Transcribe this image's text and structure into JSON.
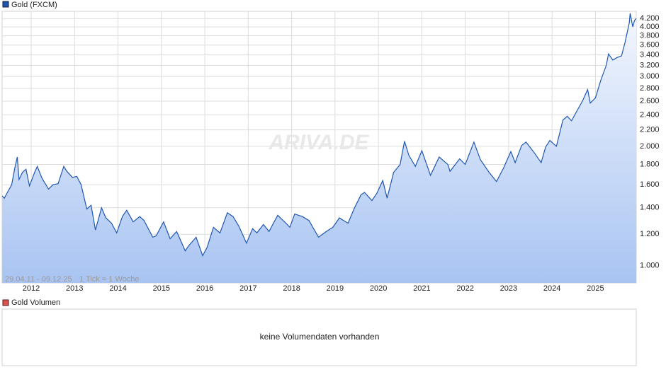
{
  "chart_data": {
    "type": "line",
    "subtitle": "29.04.11 - 09.12.25",
    "note": "1 Tick = 1 Woche",
    "watermark": "ARIVA.DE",
    "log_scale": true,
    "grid": true,
    "x": [
      2011.33,
      2011.38,
      2011.45,
      2011.55,
      2011.62,
      2011.68,
      2011.72,
      2011.8,
      2011.88,
      2011.96,
      2012.08,
      2012.14,
      2012.25,
      2012.4,
      2012.5,
      2012.62,
      2012.75,
      2012.82,
      2012.95,
      2013.05,
      2013.15,
      2013.28,
      2013.38,
      2013.48,
      2013.62,
      2013.72,
      2013.85,
      2013.97,
      2014.1,
      2014.2,
      2014.35,
      2014.5,
      2014.6,
      2014.8,
      2014.88,
      2015.05,
      2015.2,
      2015.35,
      2015.55,
      2015.62,
      2015.8,
      2015.95,
      2016.05,
      2016.2,
      2016.35,
      2016.52,
      2016.65,
      2016.78,
      2016.96,
      2017.1,
      2017.2,
      2017.35,
      2017.48,
      2017.68,
      2017.9,
      2017.96,
      2018.07,
      2018.25,
      2018.4,
      2018.62,
      2018.8,
      2018.95,
      2019.1,
      2019.3,
      2019.45,
      2019.6,
      2019.68,
      2019.85,
      2019.96,
      2020.1,
      2020.2,
      2020.35,
      2020.5,
      2020.6,
      2020.7,
      2020.85,
      2021.0,
      2021.2,
      2021.4,
      2021.6,
      2021.65,
      2021.87,
      2022.0,
      2022.2,
      2022.35,
      2022.55,
      2022.72,
      2022.88,
      2023.05,
      2023.15,
      2023.3,
      2023.4,
      2023.6,
      2023.75,
      2023.85,
      2023.95,
      2024.1,
      2024.25,
      2024.35,
      2024.45,
      2024.55,
      2024.7,
      2024.82,
      2024.88,
      2025.0,
      2025.12,
      2025.25,
      2025.3,
      2025.4,
      2025.5,
      2025.6,
      2025.68,
      2025.78,
      2025.8,
      2025.86,
      2025.9,
      2025.94
    ],
    "series": [
      {
        "name": "Gold (FXCM)",
        "color": "#1f57b0",
        "values": [
          1500,
          1480,
          1530,
          1600,
          1760,
          1880,
          1650,
          1720,
          1750,
          1590,
          1720,
          1780,
          1660,
          1560,
          1600,
          1610,
          1780,
          1730,
          1670,
          1680,
          1600,
          1390,
          1420,
          1230,
          1400,
          1320,
          1280,
          1210,
          1330,
          1380,
          1290,
          1330,
          1300,
          1180,
          1190,
          1290,
          1170,
          1220,
          1090,
          1120,
          1180,
          1060,
          1110,
          1250,
          1210,
          1360,
          1330,
          1260,
          1140,
          1240,
          1210,
          1270,
          1220,
          1340,
          1270,
          1250,
          1350,
          1330,
          1300,
          1180,
          1220,
          1250,
          1320,
          1280,
          1400,
          1510,
          1530,
          1460,
          1520,
          1640,
          1480,
          1720,
          1800,
          2060,
          1900,
          1780,
          1950,
          1690,
          1880,
          1800,
          1730,
          1860,
          1800,
          2050,
          1850,
          1720,
          1630,
          1760,
          1940,
          1820,
          2010,
          2050,
          1920,
          1820,
          1990,
          2070,
          2000,
          2330,
          2380,
          2320,
          2430,
          2600,
          2780,
          2570,
          2650,
          2930,
          3200,
          3420,
          3300,
          3350,
          3380,
          3650,
          4100,
          4330,
          4000,
          4150,
          4200
        ]
      }
    ],
    "xlim": [
      2011.33,
      2025.94
    ],
    "xticks": [
      2012,
      2013,
      2014,
      2015,
      2016,
      2017,
      2018,
      2019,
      2020,
      2021,
      2022,
      2023,
      2024,
      2025
    ],
    "ylim": [
      905,
      4380
    ],
    "yticks": [
      {
        "value": 1000,
        "label": "1.000"
      },
      {
        "value": 1200,
        "label": "1.200"
      },
      {
        "value": 1400,
        "label": "1.400"
      },
      {
        "value": 1600,
        "label": "1.600"
      },
      {
        "value": 1800,
        "label": "1.800"
      },
      {
        "value": 2000,
        "label": "2.000"
      },
      {
        "value": 2200,
        "label": "2.200"
      },
      {
        "value": 2400,
        "label": "2.400"
      },
      {
        "value": 2600,
        "label": "2.600"
      },
      {
        "value": 2800,
        "label": "2.800"
      },
      {
        "value": 3000,
        "label": "3.000"
      },
      {
        "value": 3200,
        "label": "3.200"
      },
      {
        "value": 3400,
        "label": "3.400"
      },
      {
        "value": 3600,
        "label": "3.600"
      },
      {
        "value": 3800,
        "label": "3.800"
      },
      {
        "value": 4000,
        "label": "4.000"
      },
      {
        "value": 4200,
        "label": "4.200"
      }
    ]
  },
  "volume_panel": {
    "legend": "Gold Volumen",
    "color": "#d9534f",
    "message": "keine Volumendaten vorhanden"
  }
}
